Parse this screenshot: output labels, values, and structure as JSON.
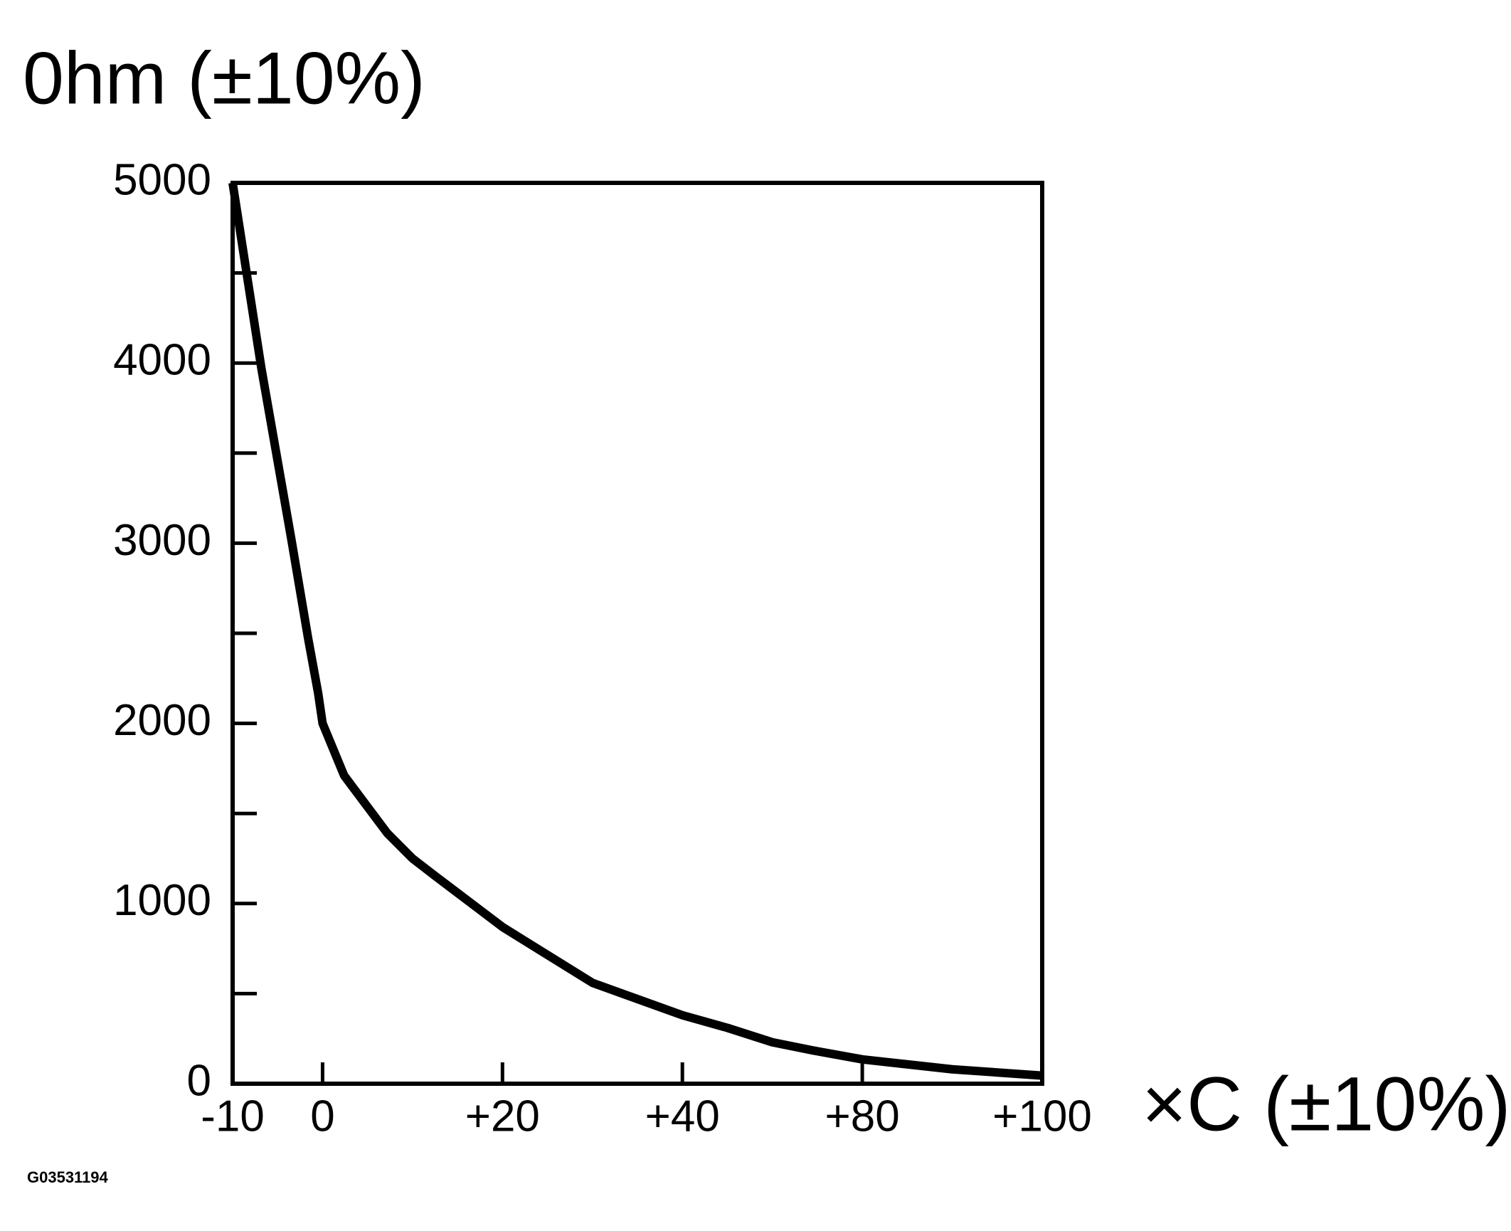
{
  "chart_data": {
    "type": "line",
    "y_label": "0hm (±10%)",
    "x_label": "×C (±10%)",
    "footnote": "G03531194",
    "x": [
      -10,
      -6.8,
      -3.5,
      -1.6,
      -0.5,
      0,
      2.4,
      7.2,
      10,
      12.6,
      20,
      30,
      40,
      50,
      60,
      70,
      80,
      90,
      100
    ],
    "series": [
      {
        "color": "#000000",
        "values": [
          5000,
          3970,
          3030,
          2470,
          2170,
          2000,
          1710,
          1390,
          1250,
          1150,
          870,
          560,
          380,
          310,
          230,
          180,
          135,
          80,
          45
        ]
      }
    ],
    "xlim": [
      -10,
      100
    ],
    "xticks": [
      -10,
      0,
      {
        "value": 20,
        "label": "+20"
      },
      {
        "value": 40,
        "label": "+40"
      },
      {
        "value": 80,
        "label": "+80"
      },
      {
        "value": 100,
        "label": "+100"
      }
    ],
    "ylim": [
      0,
      5000
    ],
    "yticks": [
      0,
      1000,
      2000,
      3000,
      4000,
      5000
    ],
    "yminorticks": [
      500,
      1500,
      2500,
      3500,
      4500
    ]
  }
}
